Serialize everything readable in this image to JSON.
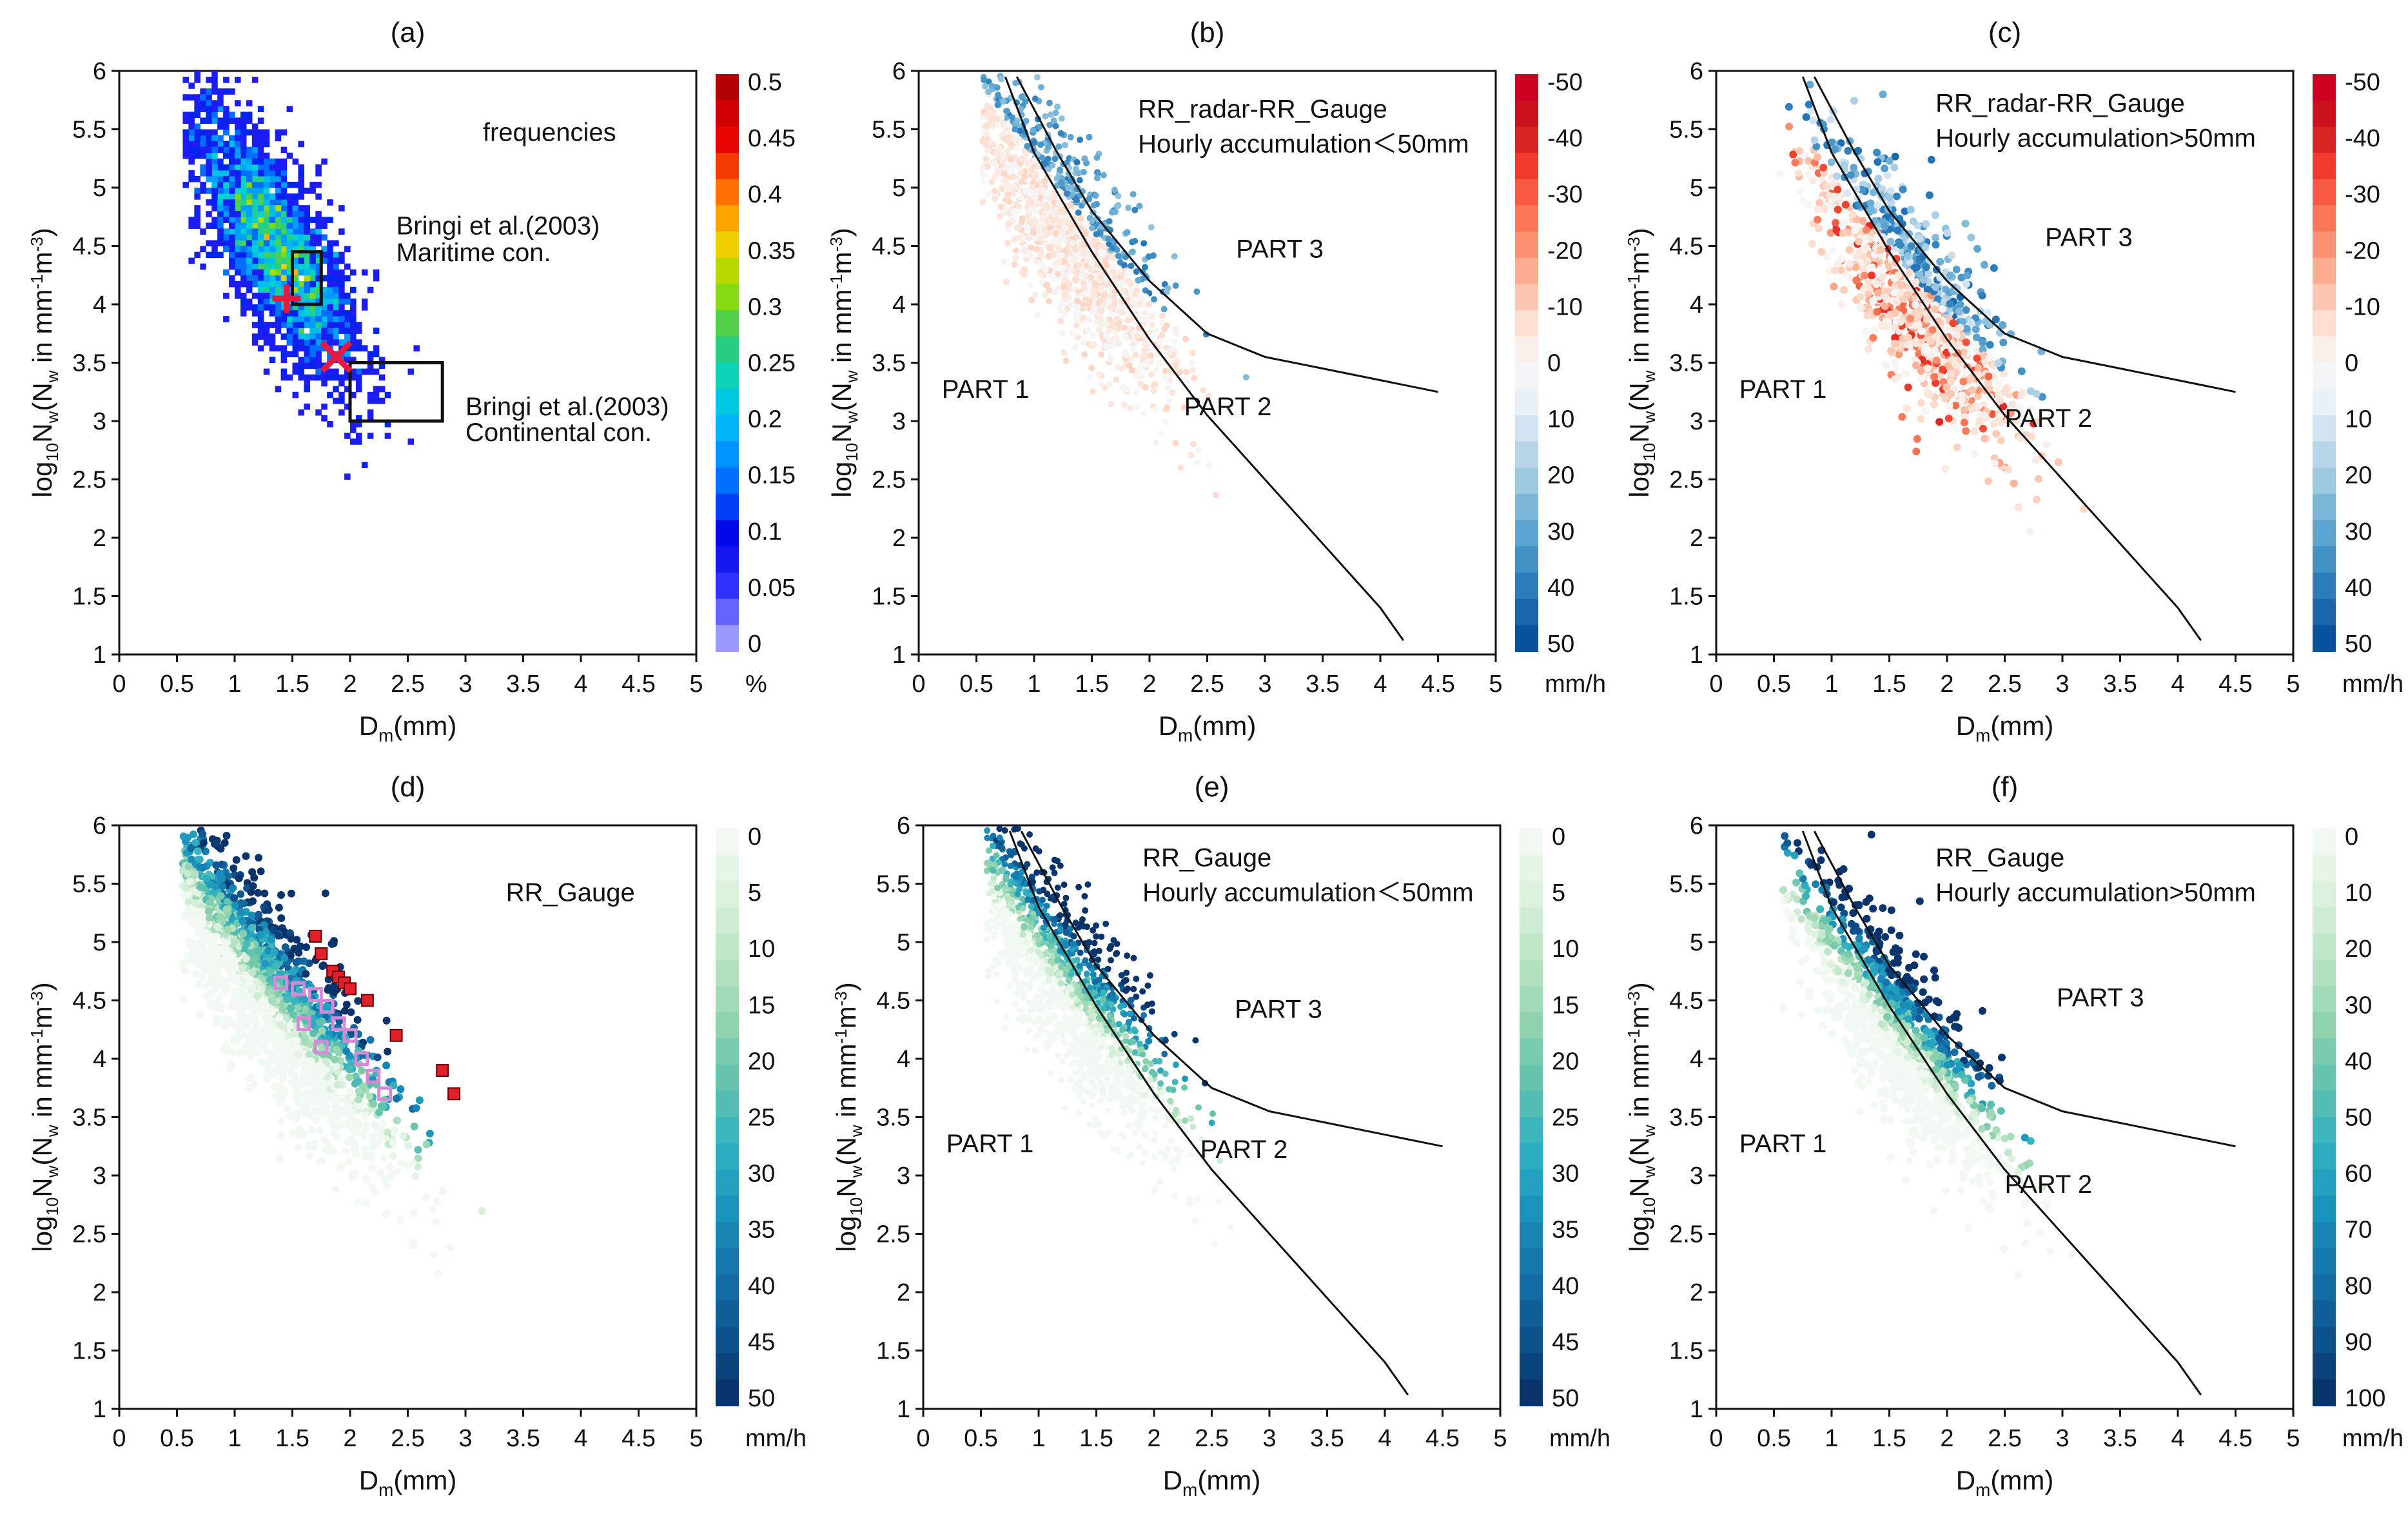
{
  "figure": {
    "panels": [
      {
        "id": "a",
        "label": "(a)",
        "xlabel_main": "D",
        "xlabel_sub": "m",
        "xlabel_tail": "(mm)",
        "ylabel": "log10Nw(Nw in mm-1m-3)",
        "annotations": [
          {
            "text": "frequencies"
          },
          {
            "text": "Bringi et al.(2003)"
          },
          {
            "text": "Maritime con."
          },
          {
            "text": "Bringi et al.(2003)"
          },
          {
            "text": "Continental con."
          }
        ],
        "colorbar_unit": "%",
        "colorbar_ticks": [
          "0.5",
          "0.45",
          "0.4",
          "0.35",
          "0.3",
          "0.25",
          "0.2",
          "0.15",
          "0.1",
          "0.05",
          "0"
        ]
      },
      {
        "id": "b",
        "label": "(b)",
        "xlabel_main": "D",
        "xlabel_sub": "m",
        "xlabel_tail": "(mm)",
        "ylabel": "log10Nw(Nw in mm-1m-3)",
        "annotations": [
          {
            "text": "RR_radar-RR_Gauge"
          },
          {
            "text": "Hourly accumulation＜50mm"
          },
          {
            "text": "PART 3"
          },
          {
            "text": "PART 1"
          },
          {
            "text": "PART 2"
          }
        ],
        "colorbar_unit": "mm/h",
        "colorbar_ticks": [
          "-50",
          "-40",
          "-30",
          "-20",
          "-10",
          "0",
          "10",
          "20",
          "30",
          "40",
          "50"
        ]
      },
      {
        "id": "c",
        "label": "(c)",
        "xlabel_main": "D",
        "xlabel_sub": "m",
        "xlabel_tail": "(mm)",
        "ylabel": "log10Nw(Nw in mm-1m-3)",
        "annotations": [
          {
            "text": "RR_radar-RR_Gauge"
          },
          {
            "text": "Hourly accumulation>50mm"
          },
          {
            "text": "PART 3"
          },
          {
            "text": "PART 1"
          },
          {
            "text": "PART 2"
          }
        ],
        "colorbar_unit": "mm/h",
        "colorbar_ticks": [
          "-50",
          "-40",
          "-30",
          "-20",
          "-10",
          "0",
          "10",
          "20",
          "30",
          "40",
          "50"
        ]
      },
      {
        "id": "d",
        "label": "(d)",
        "xlabel_main": "D",
        "xlabel_sub": "m",
        "xlabel_tail": "(mm)",
        "ylabel": "log10Nw(Nw in mm-1m-3)",
        "annotations": [
          {
            "text": "RR_Gauge"
          }
        ],
        "colorbar_unit": "mm/h",
        "colorbar_ticks": [
          "0",
          "5",
          "10",
          "15",
          "20",
          "25",
          "30",
          "35",
          "40",
          "45",
          "50"
        ]
      },
      {
        "id": "e",
        "label": "(e)",
        "xlabel_main": "D",
        "xlabel_sub": "m",
        "xlabel_tail": "(mm)",
        "ylabel": "log10Nw(Nw in mm-1m-3)",
        "annotations": [
          {
            "text": "RR_Gauge"
          },
          {
            "text": "Hourly accumulation＜50mm"
          },
          {
            "text": "PART 3"
          },
          {
            "text": "PART 1"
          },
          {
            "text": "PART 2"
          }
        ],
        "colorbar_unit": "mm/h",
        "colorbar_ticks": [
          "0",
          "5",
          "10",
          "15",
          "20",
          "25",
          "30",
          "35",
          "40",
          "45",
          "50"
        ]
      },
      {
        "id": "f",
        "label": "(f)",
        "xlabel_main": "D",
        "xlabel_sub": "m",
        "xlabel_tail": "(mm)",
        "ylabel": "log10Nw(Nw in mm-1m-3)",
        "annotations": [
          {
            "text": "RR_Gauge"
          },
          {
            "text": "Hourly accumulation>50mm"
          },
          {
            "text": "PART 3"
          },
          {
            "text": "PART 1"
          },
          {
            "text": "PART 2"
          }
        ],
        "colorbar_unit": "mm/h",
        "colorbar_ticks": [
          "0",
          "10",
          "20",
          "30",
          "40",
          "50",
          "60",
          "70",
          "80",
          "90",
          "100"
        ]
      }
    ]
  },
  "chart_data": [
    {
      "panel": "a",
      "type": "heatmap",
      "title": "(a)",
      "xlabel": "Dm(mm)",
      "ylabel": "log10Nw(Nw in mm-1m-3)",
      "xlim": [
        0,
        5
      ],
      "ylim": [
        1,
        6
      ],
      "xticks": [
        "0",
        "0.5",
        "1",
        "1.5",
        "2",
        "2.5",
        "3",
        "3.5",
        "4",
        "4.5",
        "5"
      ],
      "yticks": [
        "1",
        "1.5",
        "2",
        "2.5",
        "3",
        "3.5",
        "4",
        "4.5",
        "5",
        "5.5",
        "6"
      ],
      "colorbar": {
        "label": "%",
        "min": 0,
        "max": 0.5,
        "colormap": "jet"
      },
      "density_center": {
        "x": 1.3,
        "y": 4.0
      },
      "markers": [
        {
          "name": "Bringi maritime centroid",
          "shape": "plus",
          "x": 1.45,
          "y": 4.05,
          "color": "#e8193c"
        },
        {
          "name": "Bringi continental centroid",
          "shape": "cross",
          "x": 1.88,
          "y": 3.55,
          "color": "#e8193c"
        }
      ],
      "boxes": [
        {
          "name": "Maritime con.",
          "x": [
            1.5,
            1.75
          ],
          "y": [
            4.0,
            4.45
          ]
        },
        {
          "name": "Continental con.",
          "x": [
            2.0,
            2.8
          ],
          "y": [
            3.0,
            3.5
          ]
        }
      ]
    },
    {
      "panel": "b",
      "type": "scatter",
      "title": "(b)",
      "xlabel": "Dm(mm)",
      "ylabel": "log10Nw(Nw in mm-1m-3)",
      "xlim": [
        0,
        5
      ],
      "ylim": [
        1,
        6
      ],
      "xticks": [
        "0",
        "0.5",
        "1",
        "1.5",
        "2",
        "2.5",
        "3",
        "3.5",
        "4",
        "4.5",
        "5"
      ],
      "yticks": [
        "1",
        "1.5",
        "2",
        "2.5",
        "3",
        "3.5",
        "4",
        "4.5",
        "5",
        "5.5",
        "6"
      ],
      "colorbar": {
        "label": "mm/h",
        "min": -50,
        "max": 50,
        "colormap": "blue-white-red"
      },
      "boundary_curves": [
        {
          "name": "PART 1/2 boundary",
          "points": [
            [
              0.75,
              5.95
            ],
            [
              1.0,
              5.3
            ],
            [
              1.5,
              4.45
            ],
            [
              2.0,
              3.7
            ],
            [
              2.5,
              3.05
            ],
            [
              3.0,
              2.5
            ],
            [
              3.5,
              1.95
            ],
            [
              4.0,
              1.4
            ],
            [
              4.2,
              1.12
            ]
          ]
        },
        {
          "name": "PART 2/3 boundary",
          "points": [
            [
              0.85,
              5.95
            ],
            [
              1.2,
              5.3
            ],
            [
              1.5,
              4.8
            ],
            [
              2.0,
              4.2
            ],
            [
              2.5,
              3.75
            ],
            [
              3.0,
              3.55
            ],
            [
              3.5,
              3.45
            ],
            [
              4.0,
              3.35
            ],
            [
              4.5,
              3.25
            ]
          ]
        }
      ]
    },
    {
      "panel": "c",
      "type": "scatter",
      "title": "(c)",
      "xlabel": "Dm(mm)",
      "ylabel": "log10Nw(Nw in mm-1m-3)",
      "xlim": [
        0,
        5
      ],
      "ylim": [
        1,
        6
      ],
      "xticks": [
        "0",
        "0.5",
        "1",
        "1.5",
        "2",
        "2.5",
        "3",
        "3.5",
        "4",
        "4.5",
        "5"
      ],
      "yticks": [
        "1",
        "1.5",
        "2",
        "2.5",
        "3",
        "3.5",
        "4",
        "4.5",
        "5",
        "5.5",
        "6"
      ],
      "colorbar": {
        "label": "mm/h",
        "min": -50,
        "max": 50,
        "colormap": "blue-white-red"
      },
      "boundary_curves": [
        {
          "name": "PART 1/2 boundary",
          "points": [
            [
              0.75,
              5.95
            ],
            [
              1.0,
              5.3
            ],
            [
              1.5,
              4.45
            ],
            [
              2.0,
              3.7
            ],
            [
              2.5,
              3.05
            ],
            [
              3.0,
              2.5
            ],
            [
              3.5,
              1.95
            ],
            [
              4.0,
              1.4
            ],
            [
              4.2,
              1.12
            ]
          ]
        },
        {
          "name": "PART 2/3 boundary",
          "points": [
            [
              0.85,
              5.95
            ],
            [
              1.2,
              5.3
            ],
            [
              1.5,
              4.8
            ],
            [
              2.0,
              4.2
            ],
            [
              2.5,
              3.75
            ],
            [
              3.0,
              3.55
            ],
            [
              3.5,
              3.45
            ],
            [
              4.0,
              3.35
            ],
            [
              4.5,
              3.25
            ]
          ]
        }
      ]
    },
    {
      "panel": "d",
      "type": "scatter",
      "title": "(d)",
      "xlabel": "Dm(mm)",
      "ylabel": "log10Nw(Nw in mm-1m-3)",
      "xlim": [
        0,
        5
      ],
      "ylim": [
        1,
        6
      ],
      "xticks": [
        "0",
        "0.5",
        "1",
        "1.5",
        "2",
        "2.5",
        "3",
        "3.5",
        "4",
        "4.5",
        "5"
      ],
      "yticks": [
        "1",
        "1.5",
        "2",
        "2.5",
        "3",
        "3.5",
        "4",
        "4.5",
        "5",
        "5.5",
        "6"
      ],
      "colorbar": {
        "label": "mm/h",
        "min": 0,
        "max": 50,
        "colormap": "greens-to-dark-blue"
      },
      "highlight_markers": [
        {
          "shape": "red-square",
          "points": [
            [
              1.7,
              5.05
            ],
            [
              1.75,
              4.9
            ],
            [
              1.85,
              4.75
            ],
            [
              1.9,
              4.7
            ],
            [
              1.95,
              4.65
            ],
            [
              2.0,
              4.6
            ],
            [
              2.15,
              4.5
            ],
            [
              2.4,
              4.2
            ],
            [
              2.8,
              3.9
            ],
            [
              2.9,
              3.7
            ]
          ]
        },
        {
          "shape": "pink-square",
          "points": [
            [
              1.4,
              4.65
            ],
            [
              1.55,
              4.6
            ],
            [
              1.7,
              4.55
            ],
            [
              1.8,
              4.45
            ],
            [
              1.9,
              4.3
            ],
            [
              2.0,
              4.2
            ],
            [
              1.75,
              4.1
            ],
            [
              2.1,
              4.0
            ],
            [
              2.2,
              3.85
            ],
            [
              1.6,
              4.3
            ],
            [
              2.3,
              3.7
            ]
          ]
        }
      ]
    },
    {
      "panel": "e",
      "type": "scatter",
      "title": "(e)",
      "xlabel": "Dm(mm)",
      "ylabel": "log10Nw(Nw in mm-1m-3)",
      "xlim": [
        0,
        5
      ],
      "ylim": [
        1,
        6
      ],
      "xticks": [
        "0",
        "0.5",
        "1",
        "1.5",
        "2",
        "2.5",
        "3",
        "3.5",
        "4",
        "4.5",
        "5"
      ],
      "yticks": [
        "1",
        "1.5",
        "2",
        "2.5",
        "3",
        "3.5",
        "4",
        "4.5",
        "5",
        "5.5",
        "6"
      ],
      "colorbar": {
        "label": "mm/h",
        "min": 0,
        "max": 50,
        "colormap": "greens-to-dark-blue"
      },
      "boundary_curves": [
        {
          "name": "PART 1/2 boundary",
          "points": [
            [
              0.75,
              5.95
            ],
            [
              1.0,
              5.3
            ],
            [
              1.5,
              4.45
            ],
            [
              2.0,
              3.7
            ],
            [
              2.5,
              3.05
            ],
            [
              3.0,
              2.5
            ],
            [
              3.5,
              1.95
            ],
            [
              4.0,
              1.4
            ],
            [
              4.2,
              1.12
            ]
          ]
        },
        {
          "name": "PART 2/3 boundary",
          "points": [
            [
              0.85,
              5.95
            ],
            [
              1.2,
              5.3
            ],
            [
              1.5,
              4.8
            ],
            [
              2.0,
              4.2
            ],
            [
              2.5,
              3.75
            ],
            [
              3.0,
              3.55
            ],
            [
              3.5,
              3.45
            ],
            [
              4.0,
              3.35
            ],
            [
              4.5,
              3.25
            ]
          ]
        }
      ]
    },
    {
      "panel": "f",
      "type": "scatter",
      "title": "(f)",
      "xlabel": "Dm(mm)",
      "ylabel": "log10Nw(Nw in mm-1m-3)",
      "xlim": [
        0,
        5
      ],
      "ylim": [
        1,
        6
      ],
      "xticks": [
        "0",
        "0.5",
        "1",
        "1.5",
        "2",
        "2.5",
        "3",
        "3.5",
        "4",
        "4.5",
        "5"
      ],
      "yticks": [
        "1",
        "1.5",
        "2",
        "2.5",
        "3",
        "3.5",
        "4",
        "4.5",
        "5",
        "5.5",
        "6"
      ],
      "colorbar": {
        "label": "mm/h",
        "min": 0,
        "max": 100,
        "colormap": "greens-to-dark-blue"
      },
      "boundary_curves": [
        {
          "name": "PART 1/2 boundary",
          "points": [
            [
              0.75,
              5.95
            ],
            [
              1.0,
              5.3
            ],
            [
              1.5,
              4.45
            ],
            [
              2.0,
              3.7
            ],
            [
              2.5,
              3.05
            ],
            [
              3.0,
              2.5
            ],
            [
              3.5,
              1.95
            ],
            [
              4.0,
              1.4
            ],
            [
              4.2,
              1.12
            ]
          ]
        },
        {
          "name": "PART 2/3 boundary",
          "points": [
            [
              0.85,
              5.95
            ],
            [
              1.2,
              5.3
            ],
            [
              1.5,
              4.8
            ],
            [
              2.0,
              4.2
            ],
            [
              2.5,
              3.75
            ],
            [
              3.0,
              3.55
            ],
            [
              3.5,
              3.45
            ],
            [
              4.0,
              3.35
            ],
            [
              4.5,
              3.25
            ]
          ]
        }
      ]
    }
  ]
}
